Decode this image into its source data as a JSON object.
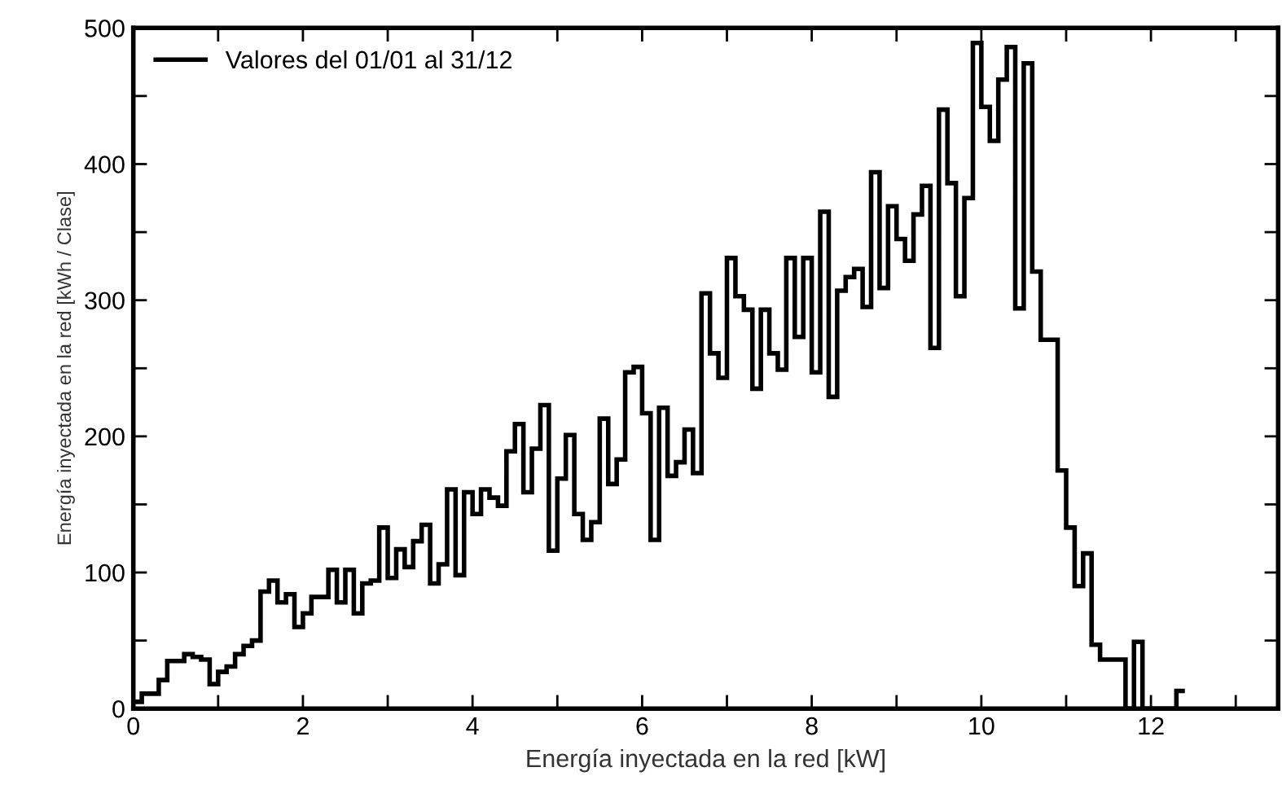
{
  "chart_data": {
    "type": "histogram",
    "xlabel": "Energía inyectada en la red [kW]",
    "ylabel": "Energía inyectada en la red [kWh / Clase]",
    "bins": [
      0,
      0.1,
      0.2,
      0.3,
      0.4,
      0.5,
      0.6,
      0.7,
      0.8,
      0.9,
      1,
      1.1,
      1.2,
      1.3,
      1.4,
      1.5,
      1.6,
      1.7,
      1.8,
      1.9,
      2,
      2.1,
      2.2,
      2.3,
      2.4,
      2.5,
      2.6,
      2.7,
      2.8,
      2.9,
      3,
      3.1,
      3.2,
      3.3,
      3.4,
      3.5,
      3.6,
      3.7,
      3.8,
      3.9,
      4,
      4.1,
      4.2,
      4.3,
      4.4,
      4.5,
      4.6,
      4.7,
      4.8,
      4.9,
      5,
      5.1,
      5.2,
      5.3,
      5.4,
      5.5,
      5.6,
      5.7,
      5.8,
      5.9,
      6,
      6.1,
      6.2,
      6.3,
      6.4,
      6.5,
      6.6,
      6.7,
      6.8,
      6.9,
      7,
      7.1,
      7.2,
      7.3,
      7.4,
      7.5,
      7.6,
      7.7,
      7.8,
      7.9,
      8,
      8.1,
      8.2,
      8.3,
      8.4,
      8.5,
      8.6,
      8.7,
      8.8,
      8.9,
      9,
      9.1,
      9.2,
      9.3,
      9.4,
      9.5,
      9.6,
      9.7,
      9.8,
      9.9,
      10,
      10.1,
      10.2,
      10.3,
      10.4,
      10.5,
      10.6,
      10.7,
      10.8,
      10.9,
      11,
      11.1,
      11.2,
      11.3,
      11.4,
      11.5,
      11.6,
      11.7,
      11.8,
      11.9,
      12,
      12.1,
      12.2,
      12.3,
      12.4
    ],
    "series": [
      {
        "name": "Valores del 01/01 al 31/12",
        "color": "#000000",
        "values": [
          5,
          11,
          11,
          21,
          35,
          35,
          40,
          38,
          36,
          18,
          27,
          31,
          40,
          46,
          50,
          86,
          94,
          78,
          84,
          60,
          70,
          82,
          82,
          102,
          78,
          102,
          70,
          92,
          94,
          133,
          96,
          117,
          104,
          123,
          135,
          92,
          106,
          161,
          98,
          159,
          143,
          161,
          155,
          149,
          189,
          209,
          159,
          191,
          223,
          116,
          169,
          201,
          143,
          124,
          137,
          213,
          165,
          183,
          247,
          251,
          217,
          124,
          221,
          171,
          181,
          205,
          173,
          305,
          261,
          243,
          331,
          303,
          293,
          235,
          293,
          261,
          249,
          331,
          273,
          331,
          247,
          365,
          229,
          307,
          317,
          323,
          295,
          394,
          309,
          369,
          345,
          329,
          363,
          384,
          265,
          440,
          386,
          303,
          375,
          489,
          442,
          417,
          462,
          486,
          294,
          474,
          321,
          271,
          271,
          175,
          133,
          90,
          114,
          47,
          36,
          36,
          36,
          0,
          49,
          0,
          0,
          0,
          0,
          13
        ]
      }
    ],
    "xlim": [
      0,
      13.5
    ],
    "xticks": [
      0,
      {
        "value": 1,
        "label": null
      },
      2,
      {
        "value": 3,
        "label": null
      },
      4,
      {
        "value": 5,
        "label": null
      },
      6,
      {
        "value": 7,
        "label": null
      },
      8,
      {
        "value": 9,
        "label": null
      },
      10,
      {
        "value": 11,
        "label": null
      },
      12,
      {
        "value": 13,
        "label": null
      }
    ],
    "ylim": [
      0,
      500
    ],
    "yticks": [
      0,
      {
        "value": 50,
        "label": null
      },
      100,
      {
        "value": 150,
        "label": null
      },
      200,
      {
        "value": 250,
        "label": null
      },
      300,
      {
        "value": 350,
        "label": null
      },
      400,
      {
        "value": 450,
        "label": null
      },
      500
    ],
    "grid": false,
    "legend": "top left"
  }
}
